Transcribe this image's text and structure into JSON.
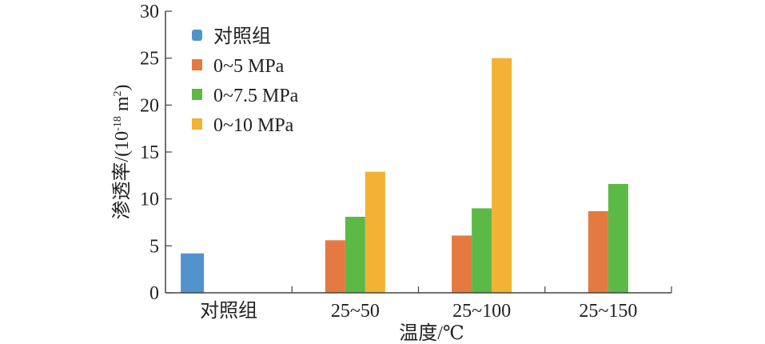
{
  "chart_data": {
    "type": "bar",
    "title": "",
    "xlabel": "温度/℃",
    "ylabel": "渗透率/(10-18 m2)",
    "ylabel_parts": {
      "main": "渗透率/(10",
      "exp": "-18",
      "unit": " m",
      "unit_exp": "2",
      "close": ")"
    },
    "ylim": [
      0,
      30
    ],
    "yticks": [
      0,
      5,
      10,
      15,
      20,
      25,
      30
    ],
    "categories": [
      "对照组",
      "25~50",
      "25~100",
      "25~150"
    ],
    "legend_position": "top-left",
    "grid": false,
    "series": [
      {
        "name": "对照组",
        "color": "#5393cc",
        "values": [
          4.2,
          null,
          null,
          null
        ]
      },
      {
        "name": "0~5 MPa",
        "color": "#e47a41",
        "values": [
          null,
          5.6,
          6.1,
          8.7
        ]
      },
      {
        "name": "0~7.5 MPa",
        "color": "#5cb946",
        "values": [
          null,
          8.1,
          9.0,
          11.6
        ]
      },
      {
        "name": "0~10 MPa",
        "color": "#f2b233",
        "values": [
          null,
          12.9,
          25.0,
          null
        ]
      }
    ]
  }
}
